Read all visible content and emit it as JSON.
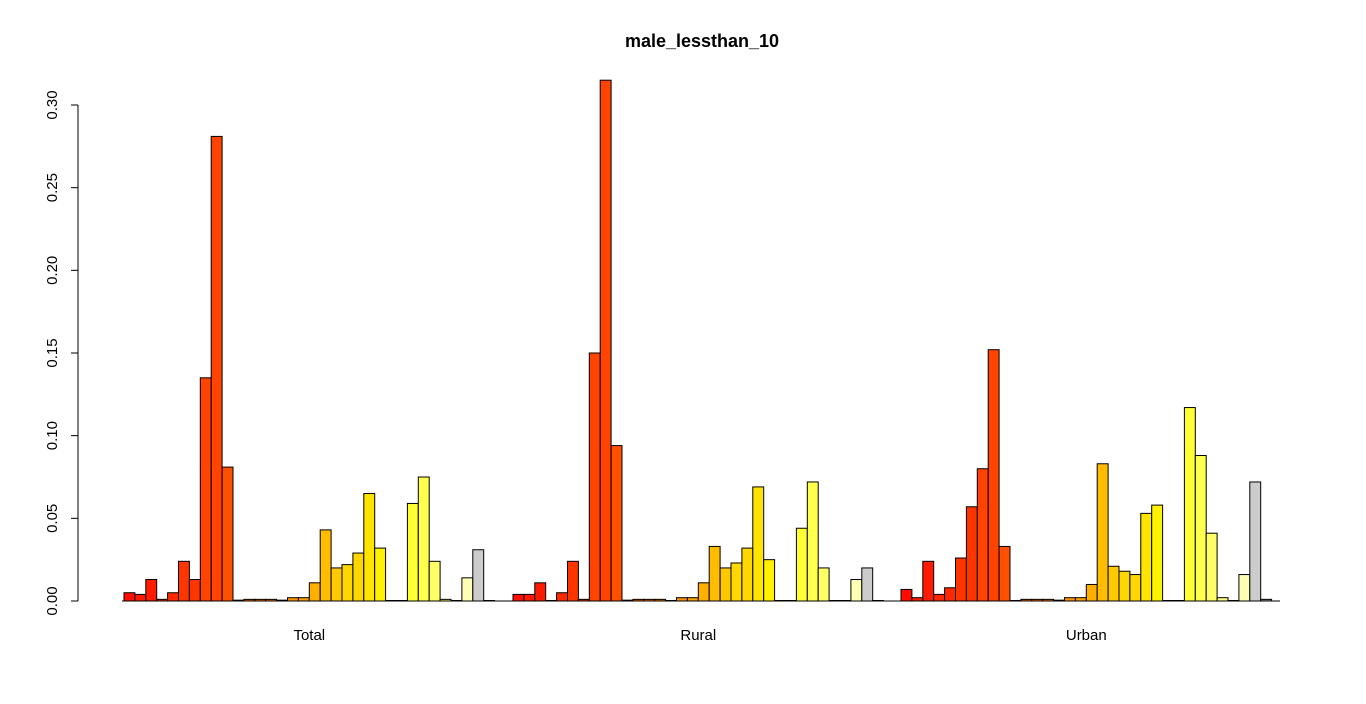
{
  "chart_data": {
    "type": "bar",
    "title": "male_lessthan_10",
    "xlabel": "",
    "ylabel": "",
    "ylim": [
      0,
      0.32
    ],
    "yticks": [
      "0.00",
      "0.05",
      "0.10",
      "0.15",
      "0.20",
      "0.25",
      "0.30"
    ],
    "ytick_values": [
      0,
      0.05,
      0.1,
      0.15,
      0.2,
      0.25,
      0.3
    ],
    "grid": false,
    "legend": "none",
    "categories": [
      "Total",
      "Rural",
      "Urban"
    ],
    "series_count": 34,
    "colors": [
      "#FF0D00",
      "#FF1A00",
      "#FF1A00",
      "#FF2800",
      "#FF2800",
      "#FF3500",
      "#FF3500",
      "#FF4300",
      "#FF4300",
      "#FF5000",
      "#FF5000",
      "#FF5E00",
      "#FF6B00",
      "#FF7900",
      "#FF8600",
      "#FF9400",
      "#FFA100",
      "#FFAF00",
      "#FFBC00",
      "#FFC900",
      "#FFD700",
      "#FFD700",
      "#FFE400",
      "#FFF200",
      "#FFFF00",
      "#FFFF1A",
      "#FFFF33",
      "#FFFF4D",
      "#FFFF66",
      "#FFFF80",
      "#FFFF99",
      "#FFFFB3",
      "#CCCCCC",
      "#999999"
    ],
    "groups": [
      {
        "name": "Total",
        "values": [
          0.005,
          0.004,
          0.013,
          0.001,
          0.005,
          0.024,
          0.013,
          0.135,
          0.281,
          0.081,
          0.0005,
          0.001,
          0.001,
          0.001,
          0.0005,
          0.002,
          0.002,
          0.011,
          0.043,
          0.02,
          0.022,
          0.029,
          0.065,
          0.032,
          0.0003,
          0.0003,
          0.059,
          0.075,
          0.024,
          0.001,
          0.0003,
          0.014,
          0.031,
          0.0003
        ]
      },
      {
        "name": "Rural",
        "values": [
          0.004,
          0.004,
          0.011,
          0.0003,
          0.005,
          0.024,
          0.001,
          0.15,
          0.315,
          0.094,
          0.0005,
          0.001,
          0.001,
          0.001,
          0.0003,
          0.002,
          0.002,
          0.011,
          0.033,
          0.02,
          0.023,
          0.032,
          0.069,
          0.025,
          0.0003,
          0.0003,
          0.044,
          0.072,
          0.02,
          0.0003,
          0.0003,
          0.013,
          0.02,
          0.0003
        ]
      },
      {
        "name": "Urban",
        "values": [
          0.007,
          0.002,
          0.024,
          0.004,
          0.008,
          0.026,
          0.057,
          0.08,
          0.152,
          0.033,
          0.0003,
          0.001,
          0.001,
          0.001,
          0.0005,
          0.002,
          0.002,
          0.01,
          0.083,
          0.021,
          0.018,
          0.016,
          0.053,
          0.058,
          0.0003,
          0.0003,
          0.117,
          0.088,
          0.041,
          0.002,
          0.0003,
          0.016,
          0.072,
          0.001
        ]
      }
    ]
  }
}
